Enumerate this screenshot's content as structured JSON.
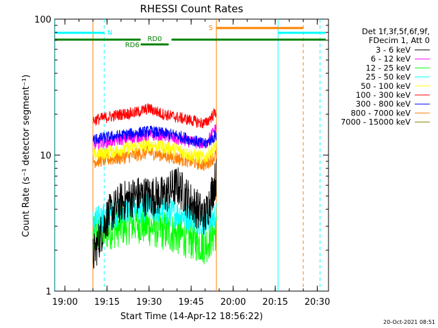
{
  "chart_data": {
    "type": "line",
    "title": "RHESSI Count Rates",
    "xlabel": "Start Time (14-Apr-12 18:56:22)",
    "ylabel": "Count Rate (s⁻¹ detector segment⁻¹)",
    "yscale": "log",
    "ylim": [
      1,
      100
    ],
    "xlim": [
      "18:56:22",
      "20:34:00"
    ],
    "x_ticks": [
      "19:00",
      "19:15",
      "19:30",
      "19:45",
      "20:00",
      "20:15",
      "20:30"
    ],
    "y_ticks": [
      "1",
      "10",
      "100"
    ],
    "legend_header": [
      "Det 1f,3f,5f,6f,9f,",
      "FDecim 1, Att 0"
    ],
    "legend_position": "right",
    "grid": false,
    "series": [
      {
        "name": "3 - 6 keV",
        "color": "#000000",
        "x": [
          "19:10",
          "19:15",
          "19:20",
          "19:25",
          "19:30",
          "19:35",
          "19:40",
          "19:45",
          "19:50",
          "19:54"
        ],
        "values": [
          1.8,
          3.5,
          4.5,
          5.0,
          5.0,
          5.0,
          6.0,
          4.5,
          3.5,
          7.0
        ]
      },
      {
        "name": "6 - 12 keV",
        "color": "#ff00ff",
        "x": [
          "19:10",
          "19:15",
          "19:20",
          "19:25",
          "19:30",
          "19:35",
          "19:40",
          "19:45",
          "19:50",
          "19:54"
        ],
        "values": [
          12,
          12.5,
          13,
          13.5,
          14,
          14,
          13,
          12.5,
          12,
          16
        ]
      },
      {
        "name": "12 - 25 keV",
        "color": "#00ff00",
        "x": [
          "19:10",
          "19:15",
          "19:20",
          "19:25",
          "19:30",
          "19:35",
          "19:40",
          "19:45",
          "19:50",
          "19:54"
        ],
        "values": [
          2.5,
          2.8,
          3.0,
          3.2,
          3.0,
          2.8,
          2.6,
          2.4,
          2.2,
          2.8
        ]
      },
      {
        "name": "25 - 50 keV",
        "color": "#00ffff",
        "x": [
          "19:10",
          "19:15",
          "19:20",
          "19:25",
          "19:30",
          "19:35",
          "19:40",
          "19:45",
          "19:50",
          "19:54"
        ],
        "values": [
          3.2,
          3.6,
          3.8,
          4.0,
          4.1,
          3.9,
          3.7,
          3.5,
          3.2,
          3.6
        ]
      },
      {
        "name": "50 - 100 keV",
        "color": "#ffff00",
        "x": [
          "19:10",
          "19:15",
          "19:20",
          "19:25",
          "19:30",
          "19:35",
          "19:40",
          "19:45",
          "19:50",
          "19:54"
        ],
        "values": [
          10,
          10.5,
          11,
          11.5,
          12,
          11.5,
          11,
          10,
          9.5,
          12
        ]
      },
      {
        "name": "100 - 300 keV",
        "color": "#ff0000",
        "x": [
          "19:10",
          "19:15",
          "19:20",
          "19:25",
          "19:30",
          "19:35",
          "19:40",
          "19:45",
          "19:50",
          "19:54"
        ],
        "values": [
          18,
          19,
          20,
          20.5,
          22,
          20,
          19,
          18,
          17,
          21
        ]
      },
      {
        "name": "300 - 800 keV",
        "color": "#0000ff",
        "x": [
          "19:10",
          "19:15",
          "19:20",
          "19:25",
          "19:30",
          "19:35",
          "19:40",
          "19:45",
          "19:50",
          "19:54"
        ],
        "values": [
          13,
          13.5,
          14,
          14.5,
          15,
          14.5,
          14,
          13,
          12,
          14
        ]
      },
      {
        "name": "800 - 7000 keV",
        "color": "#ff8000",
        "x": [
          "19:10",
          "19:15",
          "19:20",
          "19:25",
          "19:30",
          "19:35",
          "19:40",
          "19:45",
          "19:50",
          "19:54"
        ],
        "values": [
          9,
          9.3,
          9.6,
          10,
          10.5,
          10,
          9.5,
          9,
          8.5,
          10
        ]
      },
      {
        "name": "7000 - 15000 keV",
        "color": "#808000",
        "x": [],
        "values": []
      }
    ],
    "annotations": [
      {
        "text": "N",
        "color": "#00ffff"
      },
      {
        "text": "S",
        "color": "#ff8000"
      },
      {
        "text": "RD0",
        "color": "#008000"
      },
      {
        "text": "RD6",
        "color": "#008000"
      }
    ]
  },
  "footer": {
    "timestamp": "20-Oct-2021 08:51"
  }
}
